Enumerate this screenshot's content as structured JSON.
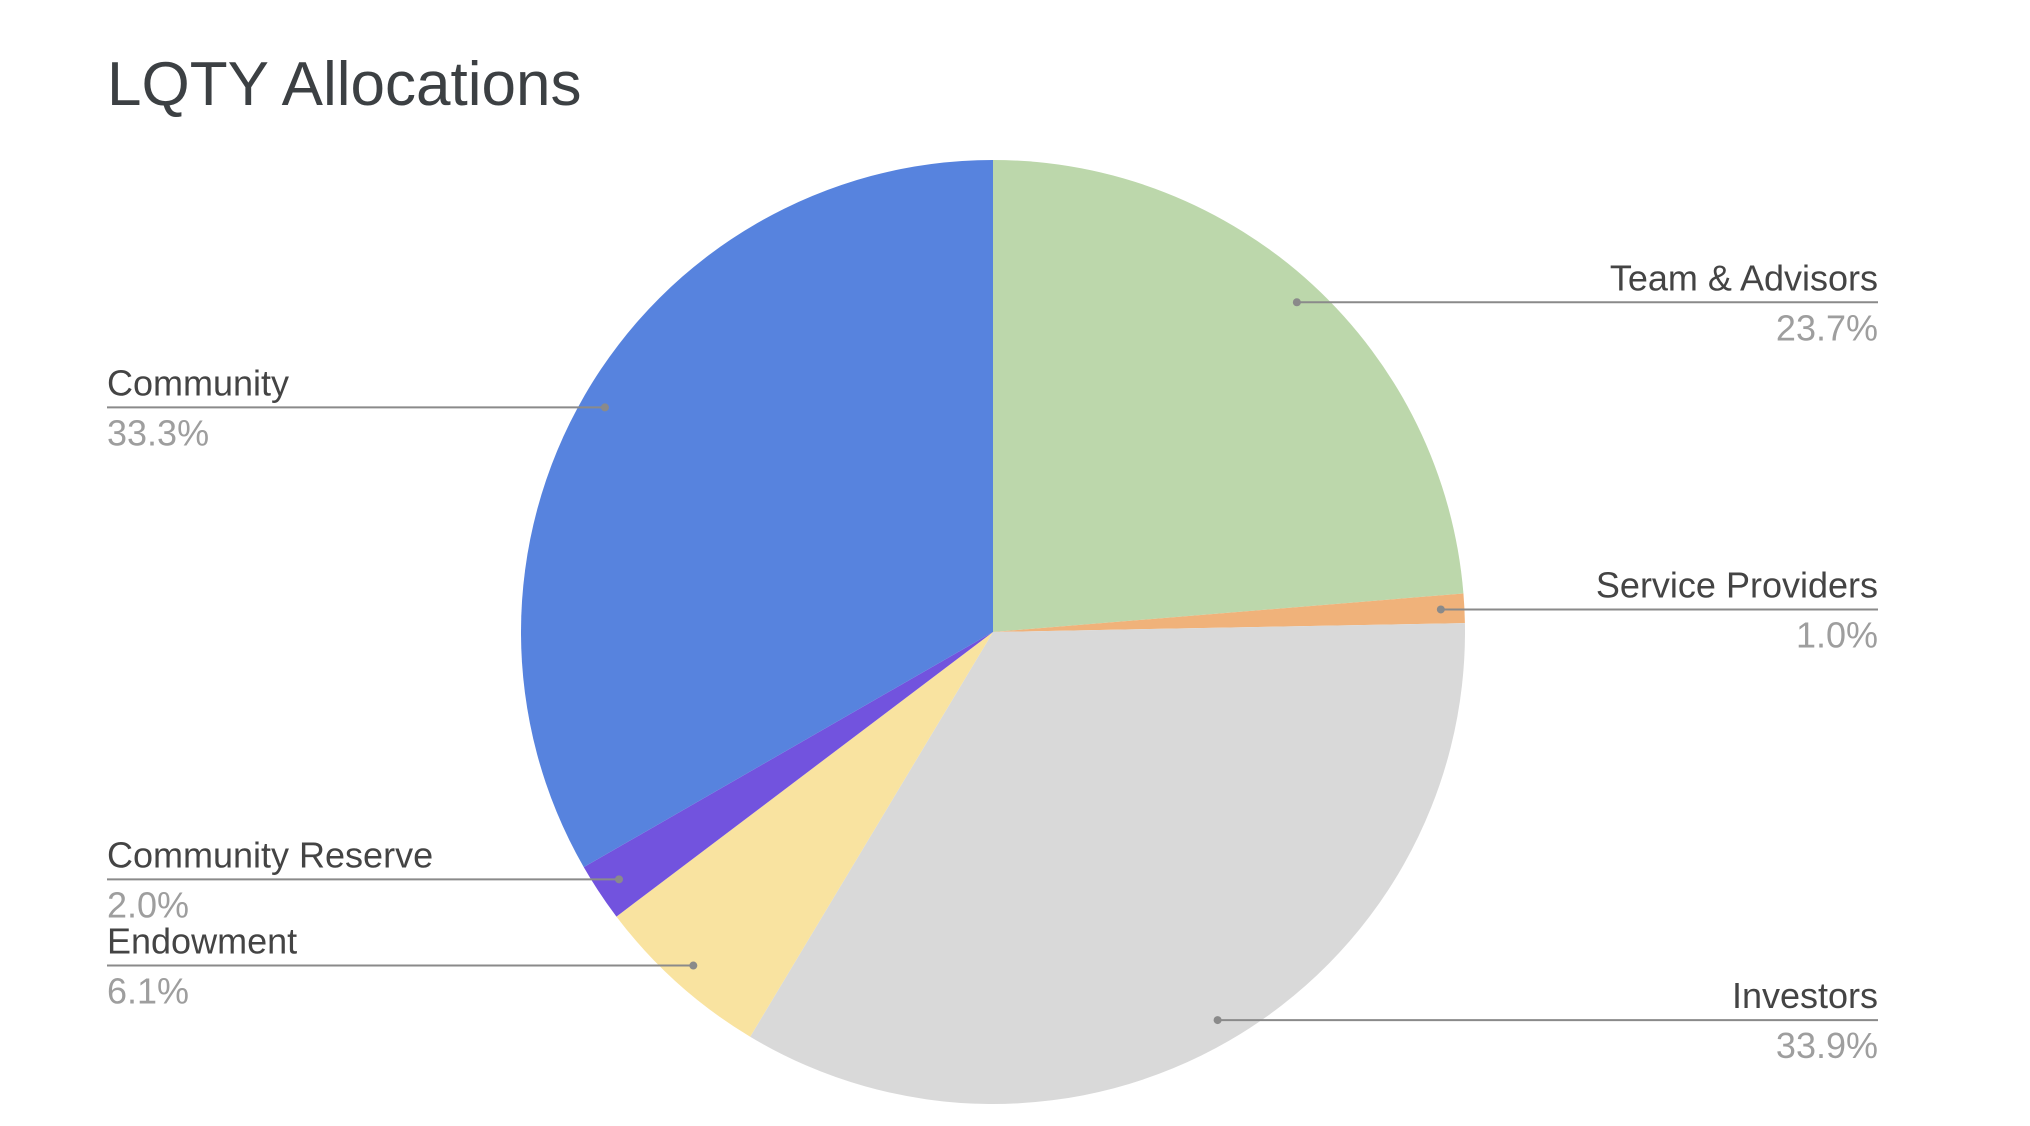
{
  "chart_data": {
    "type": "pie",
    "title": "LQTY Allocations",
    "categories": [
      "Team & Advisors",
      "Service Providers",
      "Investors",
      "Endowment",
      "Community Reserve",
      "Community"
    ],
    "values": [
      23.7,
      1.0,
      33.9,
      6.1,
      2.0,
      33.3
    ],
    "value_labels": [
      "23.7%",
      "1.0%",
      "33.9%",
      "6.1%",
      "2.0%",
      "33.3%"
    ],
    "colors": [
      "#bcd7ab",
      "#f0b27a",
      "#d9d9d9",
      "#f9e3a0",
      "#7253de",
      "#5783de"
    ]
  }
}
